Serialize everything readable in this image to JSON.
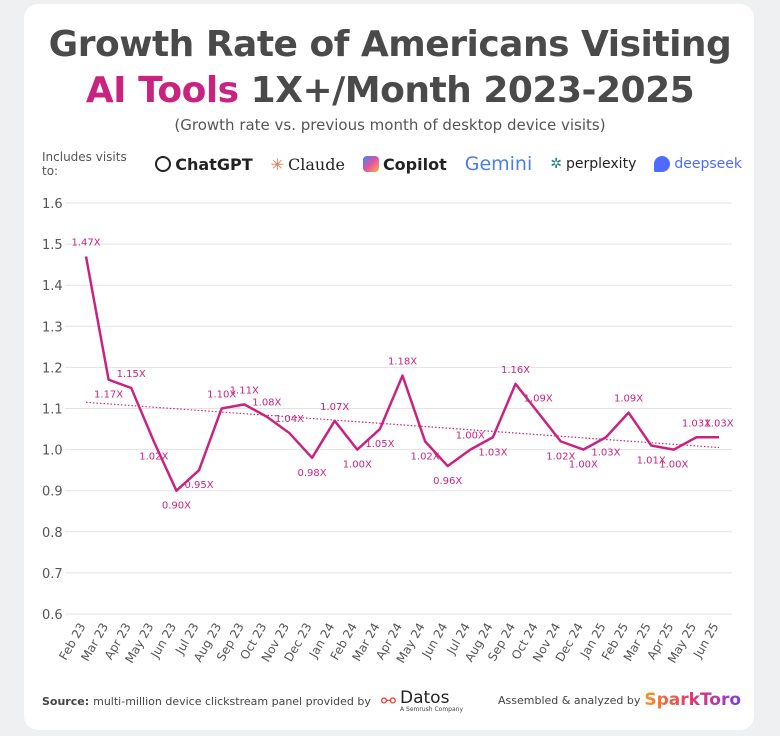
{
  "header": {
    "title_line1": "Growth Rate of Americans Visiting",
    "title_highlight": "AI Tools",
    "title_rest": "1X+/Month 2023-2025",
    "subtitle": "(Growth rate vs. previous month of desktop device visits)",
    "includes": "Includes visits to:",
    "logos": [
      "ChatGPT",
      "Claude",
      "Copilot",
      "Gemini",
      "perplexity",
      "deepseek"
    ]
  },
  "footer": {
    "source_label": "Source:",
    "source_text": "multi-million device clickstream panel provided by",
    "provider": "Datos",
    "provider_sub": "A Semrush Company",
    "credit": "Assembled & analyzed by",
    "credit_brand": "SparkToro"
  },
  "chart_data": {
    "type": "line",
    "categories": [
      "Feb 23",
      "Mar 23",
      "Apr 23",
      "May 23",
      "Jun 23",
      "Jul 23",
      "Aug 23",
      "Sep 23",
      "Oct 23",
      "Nov 23",
      "Dec 23",
      "Jan 24",
      "Feb 24",
      "Mar 24",
      "Apr 24",
      "May 24",
      "Jun 24",
      "Jul 24",
      "Aug 24",
      "Sep 24",
      "Oct 24",
      "Nov 24",
      "Dec 24",
      "Jan 25",
      "Feb 25",
      "Mar 25",
      "Apr 25",
      "May 25",
      "Jun 25"
    ],
    "series": [
      {
        "name": "Growth rate",
        "color": "#c8247f",
        "values": [
          1.47,
          1.17,
          1.15,
          1.02,
          0.9,
          0.95,
          1.1,
          1.11,
          1.08,
          1.04,
          0.98,
          1.07,
          1.0,
          1.05,
          1.18,
          1.02,
          0.96,
          1.0,
          1.03,
          1.16,
          1.09,
          1.02,
          1.0,
          1.03,
          1.09,
          1.01,
          1.0,
          1.03,
          1.03
        ],
        "value_labels": [
          "1.47X",
          "1.17X",
          "1.15X",
          "1.02X",
          "0.90X",
          "0.95X",
          "1.10X",
          "1.11X",
          "1.08X",
          "1.04X",
          "0.98X",
          "1.07X",
          "1.00X",
          "1.05X",
          "1.18X",
          "1.02X",
          "0.96X",
          "1.00X",
          "1.03X",
          "1.16X",
          "1.09X",
          "1.02X",
          "1.00X",
          "1.03X",
          "1.09X",
          "1.01X",
          "1.00X",
          "1.03X",
          "1.03X"
        ]
      }
    ],
    "trend": [
      1.115,
      1.005
    ],
    "ylim": [
      0.6,
      1.6
    ],
    "yticks": [
      0.6,
      0.7,
      0.8,
      0.9,
      {
        "value": 1,
        "label": "1.0"
      },
      1.1,
      1.2,
      1.3,
      1.4,
      1.5,
      1.6
    ],
    "grid": true
  }
}
